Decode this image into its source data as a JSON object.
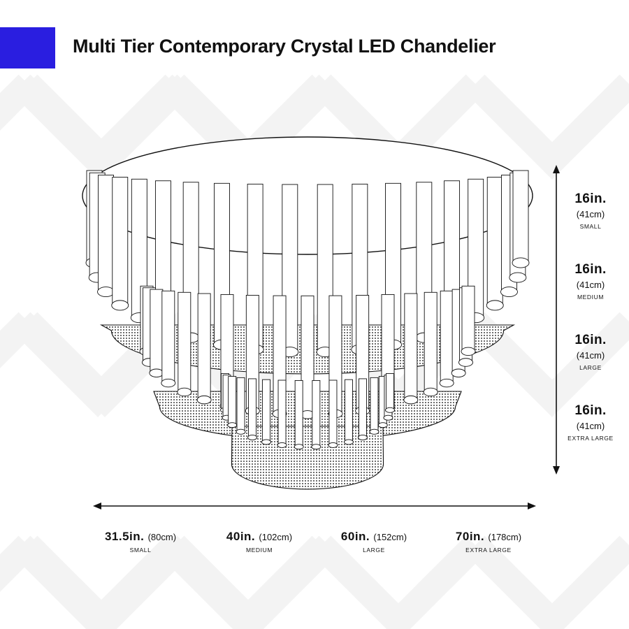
{
  "title": "Multi Tier Contemporary Crystal LED Chandelier",
  "colors": {
    "accent": "#2a1ee0",
    "watermark": "#f3f3f3",
    "line": "#111111"
  },
  "diagram": {
    "subject": "chandelier-line-drawing",
    "tiers": 3
  },
  "width_dimensions": [
    {
      "value": "31.5in.",
      "metric": "(80cm)",
      "size": "SMALL"
    },
    {
      "value": "40in.",
      "metric": "(102cm)",
      "size": "MEDIUM"
    },
    {
      "value": "60in.",
      "metric": "(152cm)",
      "size": "LARGE"
    },
    {
      "value": "70in.",
      "metric": "(178cm)",
      "size": "EXTRA LARGE"
    }
  ],
  "height_dimensions": [
    {
      "value": "16in.",
      "metric": "(41cm)",
      "size": "SMALL"
    },
    {
      "value": "16in.",
      "metric": "(41cm)",
      "size": "MEDIUM"
    },
    {
      "value": "16in.",
      "metric": "(41cm)",
      "size": "LARGE"
    },
    {
      "value": "16in.",
      "metric": "(41cm)",
      "size": "EXTRA LARGE"
    }
  ]
}
